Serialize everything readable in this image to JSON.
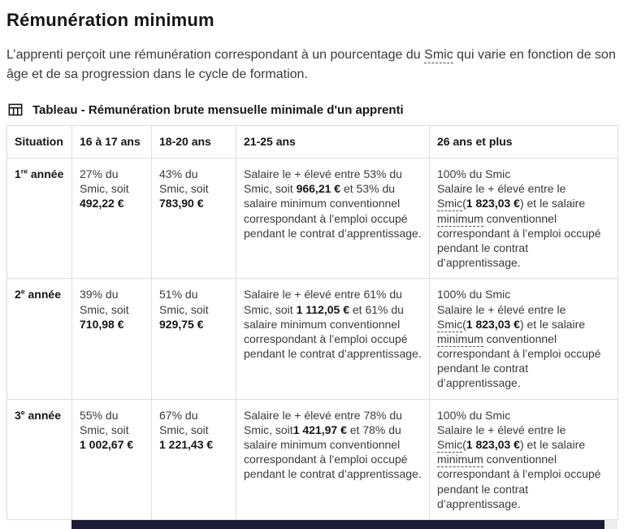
{
  "colors": {
    "title_text": "#161616",
    "body_text": "#3a3a3a",
    "border": "#dddddd",
    "scrollbar_thumb": "#1b1b35",
    "dashed_term": "#555555"
  },
  "page": {
    "title": "Rémunération minimum",
    "intro": {
      "pre": "L’apprenti perçoit une rémunération correspondant à un pourcentage du ",
      "term": "Smic",
      "post": " qui varie en fonction de son âge et de sa progression dans le cycle de formation."
    },
    "caption": "Tableau - Rémunération brute mensuelle minimale d'un apprenti"
  },
  "table": {
    "headers": [
      "Situation",
      "16 à 17 ans",
      "18-20 ans",
      "21-25 ans",
      "26 ans et plus"
    ],
    "rows": [
      {
        "situation": [
          {
            "t": "1"
          },
          {
            "t": "re",
            "sup": true
          },
          {
            "t": " année"
          }
        ],
        "cells": [
          [
            {
              "t": "27% du Smic, soit "
            },
            {
              "t": "492,22 €",
              "b": true
            }
          ],
          [
            {
              "t": "43% du Smic, soit "
            },
            {
              "t": "783,90 €",
              "b": true
            }
          ],
          [
            {
              "t": "Salaire le + élevé entre 53% du Smic, soit "
            },
            {
              "t": "966,21 €",
              "b": true
            },
            {
              "t": " et 53% du salaire minimum conventionnel correspondant à l’emploi occupé pendant le contrat d’apprentissage."
            }
          ],
          [
            {
              "t": "100% du Smic"
            },
            {
              "br": true
            },
            {
              "t": "Salaire le + élevé entre le "
            },
            {
              "t": "Smic",
              "d": true
            },
            {
              "t": "("
            },
            {
              "t": "1 823,03 €",
              "b": true
            },
            {
              "t": ") et le salaire "
            },
            {
              "t": "minimum",
              "d": true
            },
            {
              "t": " conventionnel correspondant à l’emploi occupé pendant le contrat d’apprentissage."
            }
          ]
        ]
      },
      {
        "situation": [
          {
            "t": "2"
          },
          {
            "t": "e",
            "sup": true
          },
          {
            "t": " année"
          }
        ],
        "cells": [
          [
            {
              "t": "39% du Smic, soit "
            },
            {
              "t": "710,98 €",
              "b": true
            }
          ],
          [
            {
              "t": "51% du Smic, soit "
            },
            {
              "t": "929,75 €",
              "b": true
            }
          ],
          [
            {
              "t": "Salaire le + élevé entre 61% du Smic, soit "
            },
            {
              "t": "1 112,05 €",
              "b": true
            },
            {
              "t": " et 61% du salaire minimum conventionnel correspondant à l’emploi occupé pendant le contrat d’apprentissage."
            }
          ],
          [
            {
              "t": "100% du Smic"
            },
            {
              "br": true
            },
            {
              "t": "Salaire le + élevé entre le "
            },
            {
              "t": "Smic",
              "d": true
            },
            {
              "t": "("
            },
            {
              "t": "1 823,03 €",
              "b": true
            },
            {
              "t": ") et le salaire "
            },
            {
              "t": "minimum",
              "d": true
            },
            {
              "t": " conventionnel correspondant à l’emploi occupé pendant le contrat d’apprentissage."
            }
          ]
        ]
      },
      {
        "situation": [
          {
            "t": "3"
          },
          {
            "t": "e",
            "sup": true
          },
          {
            "t": " année"
          }
        ],
        "cells": [
          [
            {
              "t": "55% du Smic, soit "
            },
            {
              "t": "1 002,67 €",
              "b": true
            }
          ],
          [
            {
              "t": "67% du Smic, soit "
            },
            {
              "t": "1 221,43 €",
              "b": true
            }
          ],
          [
            {
              "t": "Salaire le + élevé entre 78% du Smic, soit"
            },
            {
              "t": "1 421,97 €",
              "b": true
            },
            {
              "t": " et 78% du salaire minimum conventionnel correspondant à l’emploi occupé pendant le contrat d’apprentissage."
            }
          ],
          [
            {
              "t": "100% du Smic"
            },
            {
              "br": true
            },
            {
              "t": "Salaire le + élevé entre le "
            },
            {
              "t": "Smic",
              "d": true
            },
            {
              "t": "("
            },
            {
              "t": "1 823,03 €",
              "b": true
            },
            {
              "t": ") et le salaire "
            },
            {
              "t": "minimum",
              "d": true
            },
            {
              "t": " conventionnel correspondant à l’emploi occupé pendant le contrat d’apprentissage."
            }
          ]
        ]
      }
    ]
  }
}
